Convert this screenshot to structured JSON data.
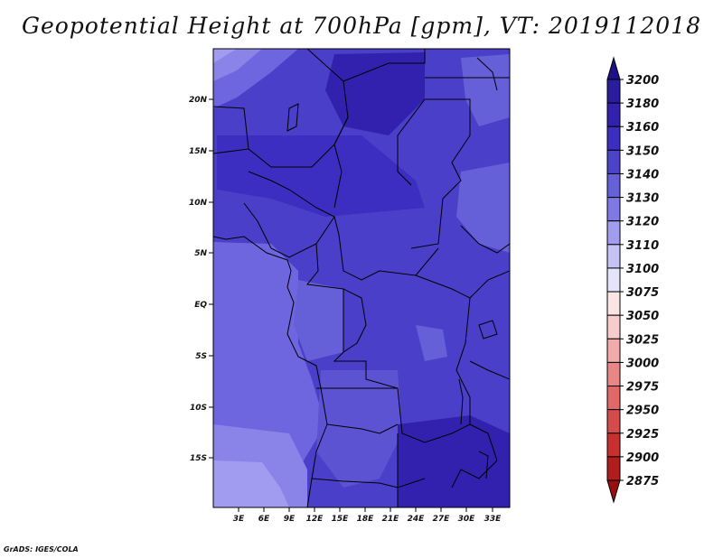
{
  "title": "Geopotential Height at 700hPa [gpm], VT: 2019112018",
  "credit": "GrADS: IGES/COLA",
  "map": {
    "lat_ticks": [
      "20N",
      "15N",
      "10N",
      "5N",
      "EQ",
      "5S",
      "10S",
      "15S"
    ],
    "lon_ticks": [
      "3E",
      "6E",
      "9E",
      "12E",
      "15E",
      "18E",
      "21E",
      "24E",
      "27E",
      "30E",
      "33E"
    ]
  },
  "colorbar": {
    "labels": [
      "3200",
      "3180",
      "3160",
      "3150",
      "3140",
      "3130",
      "3120",
      "3110",
      "3100",
      "3075",
      "3050",
      "3025",
      "3000",
      "2975",
      "2950",
      "2925",
      "2900",
      "2875"
    ],
    "colors": [
      "#1e1187",
      "#2a1c9c",
      "#3221ae",
      "#3b2ec0",
      "#4b44c8",
      "#6560d8",
      "#7f79e6",
      "#a29cf0",
      "#c6c2f6",
      "#e6e4fb",
      "#fbe4e4",
      "#f8cccc",
      "#f2aaaa",
      "#e98787",
      "#e06868",
      "#d54a4a",
      "#c83030",
      "#b11c1c",
      "#961010"
    ]
  },
  "colors": {
    "map_base": "#4a3fc8",
    "map_dark": "#3b2eb8",
    "map_light": "#6d66de",
    "map_lighter": "#8a83e8",
    "border": "#000000"
  }
}
